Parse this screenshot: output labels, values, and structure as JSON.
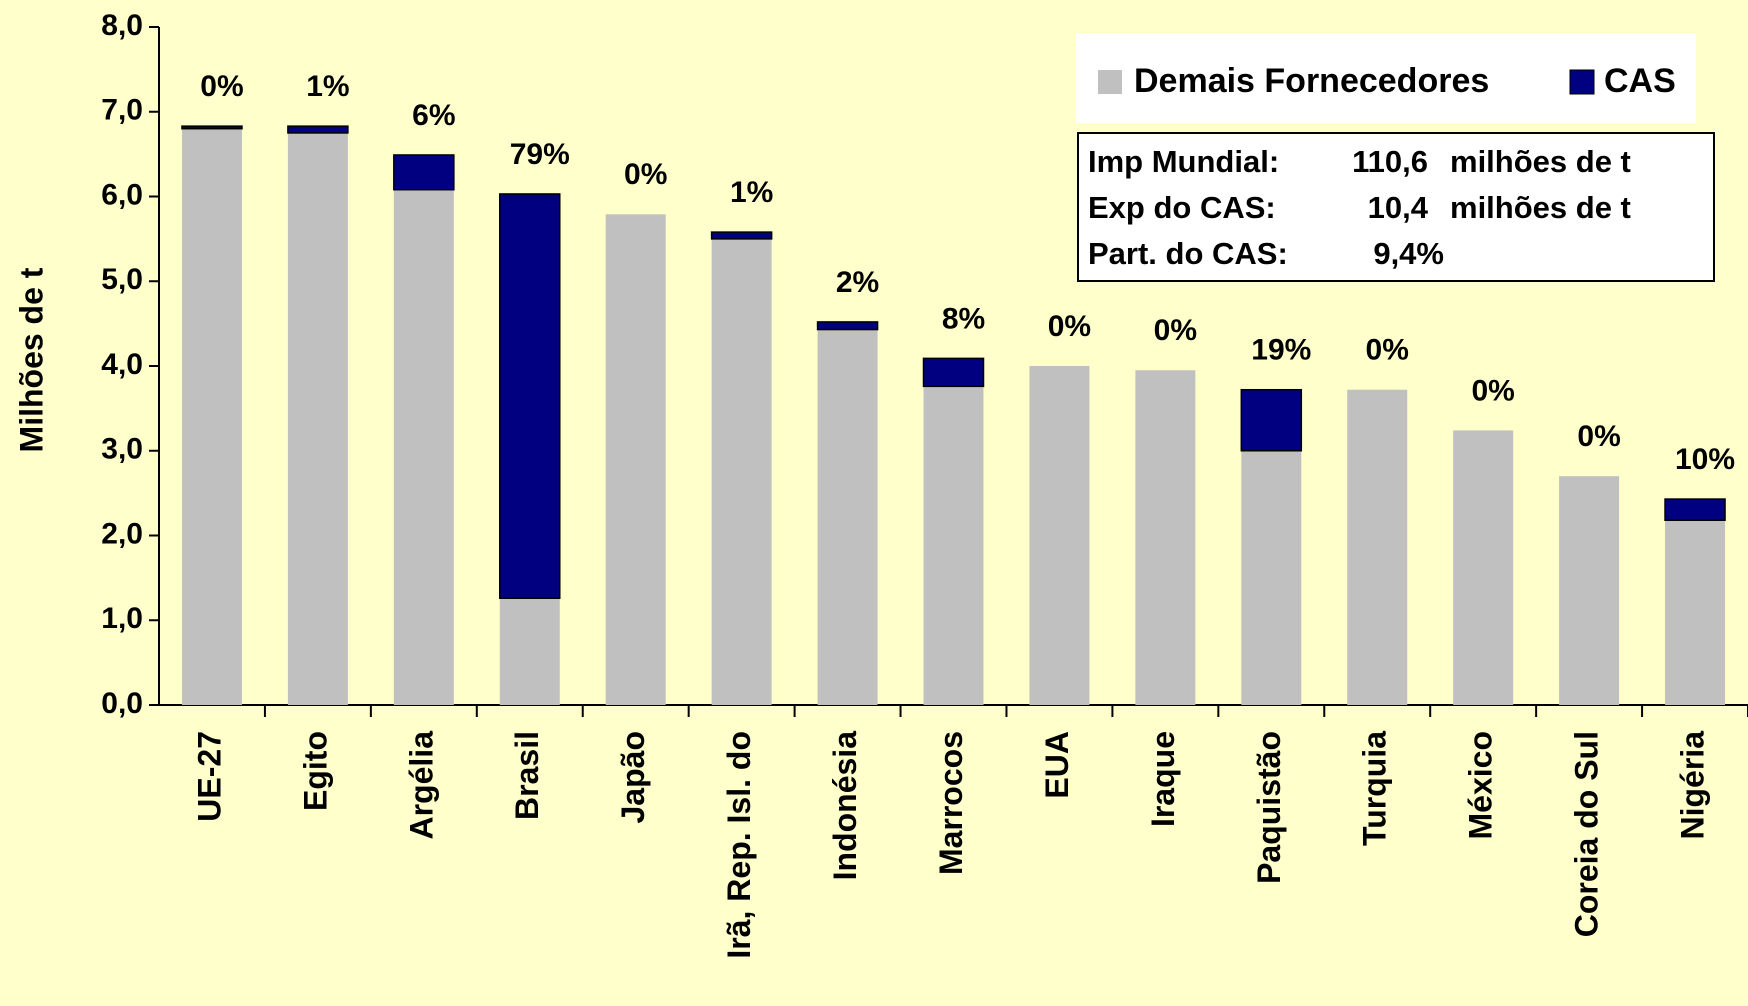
{
  "chart_data": {
    "type": "stacked_bar",
    "y_label": "Milhões de t",
    "categories": [
      "UE-27",
      "Egito",
      "Argélia",
      "Brasil",
      "Japão",
      "Irã, Rep. Isl. do",
      "Indonésia",
      "Marrocos",
      "EUA",
      "Iraque",
      "Paquistão",
      "Turquia",
      "México",
      "Coreia do Sul",
      "Nigéria"
    ],
    "series": [
      {
        "name": "Demais Fornecedores",
        "color": "#C0C0C0",
        "values": [
          6.8,
          6.75,
          6.08,
          1.26,
          5.79,
          5.5,
          4.43,
          3.76,
          4.0,
          3.95,
          3.0,
          3.72,
          3.24,
          2.7,
          2.18
        ]
      },
      {
        "name": "CAS",
        "color": "#000080",
        "values": [
          0.03,
          0.08,
          0.41,
          4.77,
          0,
          0.08,
          0.09,
          0.33,
          0,
          0,
          0.72,
          0,
          0,
          0,
          0.25
        ]
      }
    ],
    "share_labels": [
      "0%",
      "1%",
      "6%",
      "79%",
      "0%",
      "1%",
      "2%",
      "8%",
      "0%",
      "0%",
      "19%",
      "0%",
      "0%",
      "0%",
      "10%"
    ],
    "ylim": [
      0,
      8
    ],
    "yticks": [
      {
        "value": 0,
        "label": "0,0"
      },
      {
        "value": 1,
        "label": "1,0"
      },
      {
        "value": 2,
        "label": "2,0"
      },
      {
        "value": 3,
        "label": "3,0"
      },
      {
        "value": 4,
        "label": "4,0"
      },
      {
        "value": 5,
        "label": "5,0"
      },
      {
        "value": 6,
        "label": "6,0"
      },
      {
        "value": 7,
        "label": "7,0"
      },
      {
        "value": 8,
        "label": "8,0"
      }
    ],
    "legend": "top-right",
    "info_box": [
      {
        "label": "Imp Mundial:",
        "value": "110,6",
        "unit": "milhões de t"
      },
      {
        "label": "Exp do CAS:",
        "value": "10,4",
        "unit": "milhões de t"
      },
      {
        "label": "Part. do CAS:",
        "value": "9,4%"
      }
    ]
  }
}
